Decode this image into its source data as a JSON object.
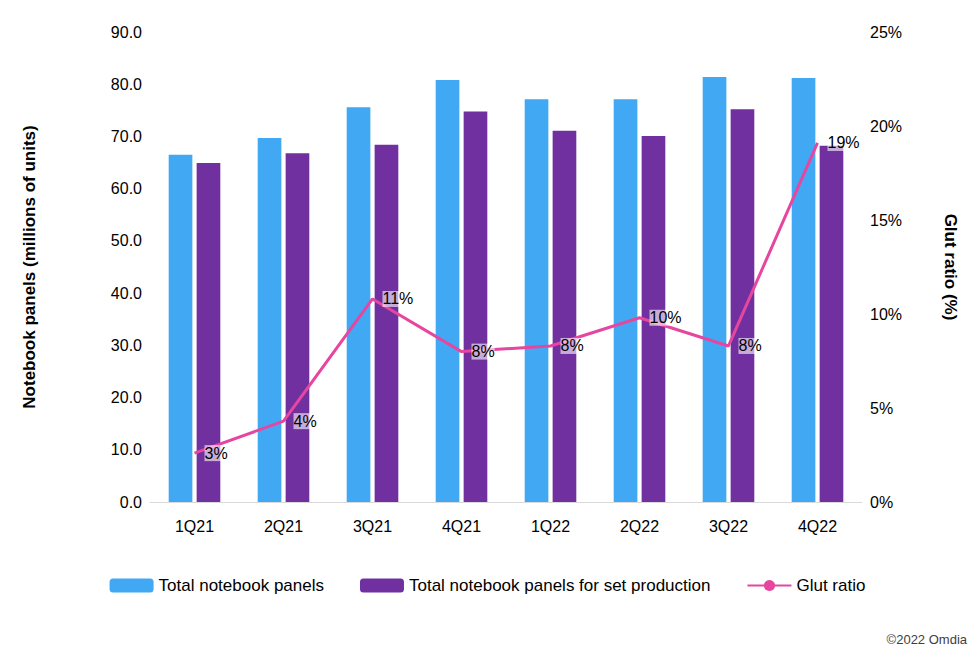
{
  "chart_data": {
    "type": "bar",
    "categories": [
      "1Q21",
      "2Q21",
      "3Q21",
      "4Q21",
      "1Q22",
      "2Q22",
      "3Q22",
      "4Q22"
    ],
    "series": [
      {
        "name": "Total notebook panels",
        "type": "bar",
        "color": "#41a8f3",
        "values": [
          66.5,
          69.7,
          75.6,
          80.8,
          77.1,
          77.1,
          81.4,
          81.2
        ]
      },
      {
        "name": "Total notebook panels for set production",
        "type": "bar",
        "color": "#7030a0",
        "values": [
          64.9,
          66.8,
          68.4,
          74.8,
          71.1,
          70.1,
          75.2,
          68.2
        ]
      },
      {
        "name": "Glut ratio",
        "type": "line",
        "axis": "y2",
        "color": "#e6469f",
        "values": [
          2.6,
          4.3,
          10.8,
          8.0,
          8.3,
          9.8,
          8.3,
          19.1
        ],
        "value_labels": [
          "3%",
          "4%",
          "11%",
          "8%",
          "8%",
          "10%",
          "8%",
          "19%"
        ],
        "data_labels": true
      }
    ],
    "y_label": "Notebook panels (millions of units)",
    "y2_label": "Glut ratio (%)",
    "ylim": [
      0,
      90
    ],
    "yticks": [
      {
        "value": 0,
        "label": "0.0"
      },
      {
        "value": 10,
        "label": "10.0"
      },
      {
        "value": 20,
        "label": "20.0"
      },
      {
        "value": 30,
        "label": "30.0"
      },
      {
        "value": 40,
        "label": "40.0"
      },
      {
        "value": 50,
        "label": "50.0"
      },
      {
        "value": 60,
        "label": "60.0"
      },
      {
        "value": 70,
        "label": "70.0"
      },
      {
        "value": 80,
        "label": "80.0"
      },
      {
        "value": 90,
        "label": "90.0"
      }
    ],
    "y2lim": [
      0,
      25
    ],
    "y2ticks": [
      {
        "value": 0,
        "label": "0%"
      },
      {
        "value": 5,
        "label": "5%"
      },
      {
        "value": 10,
        "label": "10%"
      },
      {
        "value": 15,
        "label": "15%"
      },
      {
        "value": 20,
        "label": "20%"
      },
      {
        "value": 25,
        "label": "25%"
      }
    ],
    "annotations": [
      "©2022 Omdia"
    ],
    "legend": "bottom",
    "grid": false
  }
}
